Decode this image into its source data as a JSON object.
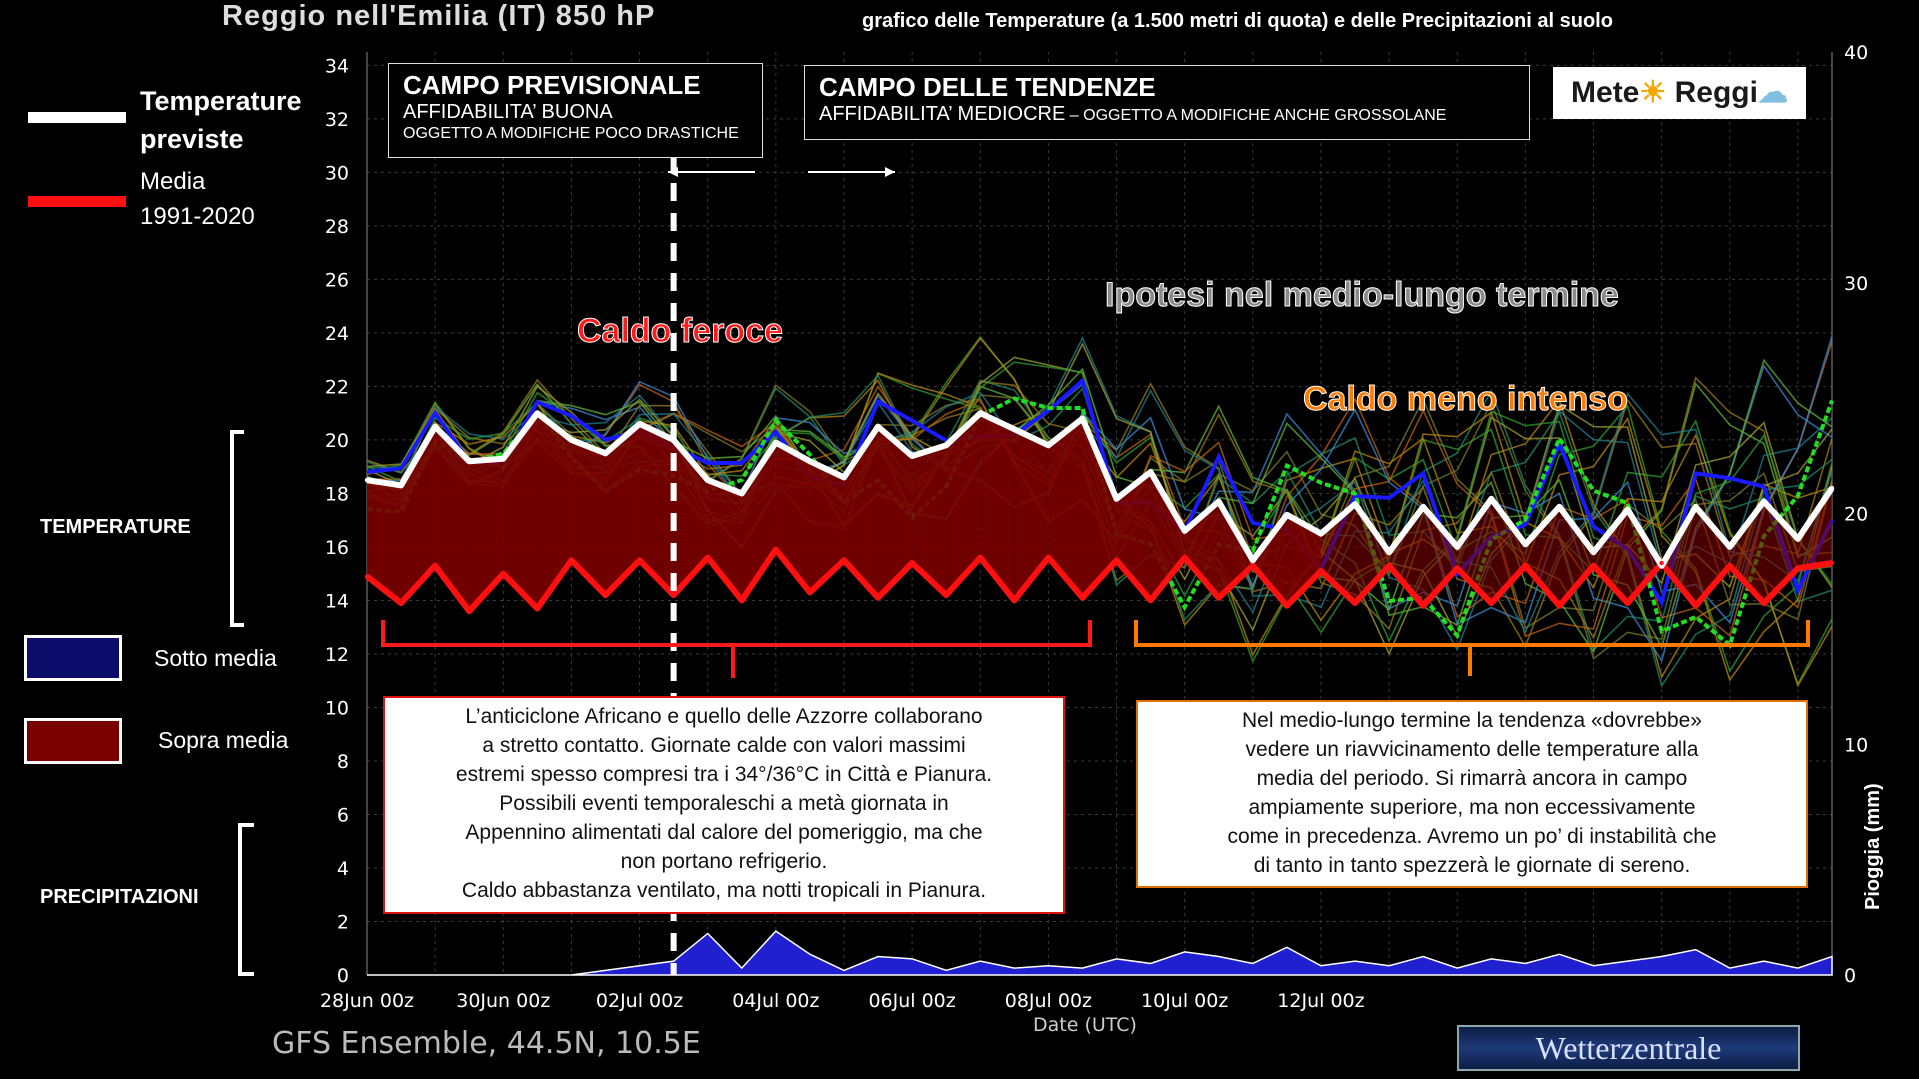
{
  "header": {
    "title": "Reggio nell'Emilia  (IT)  850 hP",
    "subtitle": "grafico delle Temperature  (a 1.500 metri di quota) e delle Precipitazioni al suolo"
  },
  "legend": {
    "forecast_label_1": "Temperature",
    "forecast_label_2": "previste",
    "mean_label_1": "Media",
    "mean_label_2": "1991-2020",
    "below_label": "Sotto media",
    "above_label": "Sopra media",
    "temperature_section": "TEMPERATURE",
    "precip_section": "PRECIPITAZIONI"
  },
  "campo_previsionale": {
    "title": "CAMPO PREVISIONALE",
    "line1": "AFFIDABILITA’ BUONA",
    "line2": "OGGETTO A MODIFICHE POCO DRASTICHE"
  },
  "campo_tendenze": {
    "title": "CAMPO DELLE TENDENZE",
    "line1": "AFFIDABILITA’ MEDIOCRE",
    "line1_suffix": " – OGGETTO A MODIFICHE ANCHE GROSSOLANE"
  },
  "logo": {
    "text_left": "Mete",
    "text_right": "Reggi"
  },
  "headlines": {
    "caldo_feroce": "Caldo feroce",
    "ipotesi": "Ipotesi nel medio-lungo termine",
    "caldo_meno": "Caldo meno intenso"
  },
  "note_left": [
    "L’anticiclone Africano e quello delle Azzorre collaborano",
    "a stretto contatto. Giornate calde con valori massimi",
    "estremi spesso compresi tra i 34°/36°C in Città e Pianura.",
    "Possibili eventi temporaleschi a metà giornata in",
    "Appennino alimentati dal calore del pomeriggio, ma che",
    "non portano refrigerio.",
    "Caldo abbastanza ventilato, ma notti tropicali in Pianura."
  ],
  "note_right": [
    "Nel medio-lungo termine la tendenza «dovrebbe»",
    "vedere un riavvicinamento delle temperature alla",
    "media del periodo. Si rimarrà ancora in campo",
    "ampiamente superiore, ma non eccessivamente",
    "come in precedenza. Avremo un po’ di instabilità che",
    "di tanto in tanto spezzerà le giornate di sereno."
  ],
  "footer": {
    "model": "GFS Ensemble, 44.5N, 10.5E",
    "xlabel": "Date (UTC)",
    "ylabel_right": "Pioggia (mm)",
    "source": "Wetterzentrale"
  },
  "colors": {
    "forecast": "#ffffff",
    "mean": "#ff1010",
    "above_fill": "#7a0000",
    "below_fill": "#0c0c6a",
    "precip_fill": "#2020d0",
    "bracket_red": "#ff1a1a",
    "bracket_orange": "#ff7a00",
    "divider": "#ffffff"
  },
  "chart_data": {
    "type": "line",
    "x_start": "28Jun 00z",
    "x_step_hours": 12,
    "xtick_labels": [
      "28Jun 00z",
      "30Jun 00z",
      "02Jul 00z",
      "04Jul 00z",
      "06Jul 00z",
      "08Jul 00z",
      "10Jul 00z",
      "12Jul 00z"
    ],
    "y_left_ticks": [
      0,
      2,
      4,
      6,
      8,
      10,
      12,
      14,
      16,
      18,
      20,
      22,
      24,
      26,
      28,
      30,
      32,
      34
    ],
    "y_right_ticks": [
      0,
      10,
      20,
      30,
      40
    ],
    "ylim_left": [
      0,
      34.5
    ],
    "ylim_right": [
      0,
      40
    ],
    "series": [
      {
        "name": "Temperature previste",
        "axis": "left",
        "values": [
          18.5,
          18.3,
          20.5,
          19.2,
          19.3,
          21.0,
          20.0,
          19.5,
          20.6,
          20.0,
          18.5,
          18.0,
          19.9,
          19.2,
          18.6,
          20.5,
          19.4,
          19.8,
          21.0,
          20.4,
          19.8,
          20.8,
          17.8,
          18.8,
          16.6,
          17.7,
          15.5,
          17.2,
          16.5,
          17.6,
          15.8,
          17.5,
          16.0,
          17.8,
          16.1,
          17.5,
          15.8,
          17.4,
          15.3,
          17.5,
          16.0,
          17.7,
          16.3,
          18.2
        ]
      },
      {
        "name": "Media 1991-2020",
        "axis": "left",
        "values": [
          14.9,
          13.9,
          15.3,
          13.6,
          15.0,
          13.7,
          15.5,
          14.2,
          15.5,
          14.2,
          15.6,
          14.0,
          15.9,
          14.3,
          15.5,
          14.1,
          15.4,
          14.2,
          15.6,
          14.0,
          15.6,
          14.1,
          15.5,
          14.0,
          15.6,
          14.1,
          15.3,
          13.8,
          15.1,
          13.9,
          15.3,
          13.8,
          15.2,
          13.9,
          15.3,
          13.8,
          15.3,
          13.9,
          15.4,
          13.8,
          15.3,
          13.9,
          15.2,
          15.4
        ]
      },
      {
        "name": "Pioggia (mm)",
        "axis": "right",
        "values": [
          0,
          0,
          0,
          0,
          0,
          0,
          0,
          0.2,
          0.4,
          0.6,
          1.8,
          0.3,
          1.9,
          0.9,
          0.2,
          0.8,
          0.7,
          0.2,
          0.6,
          0.3,
          0.4,
          0.3,
          0.7,
          0.5,
          1.0,
          0.8,
          0.5,
          1.2,
          0.4,
          0.6,
          0.4,
          0.8,
          0.3,
          0.7,
          0.5,
          0.9,
          0.4,
          0.6,
          0.8,
          1.1,
          0.3,
          0.6,
          0.3,
          0.8
        ]
      }
    ]
  }
}
